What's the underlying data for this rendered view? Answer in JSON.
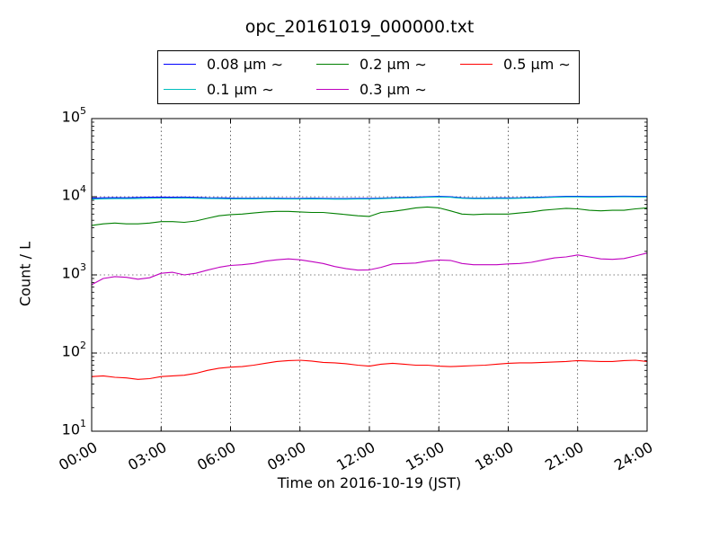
{
  "chart_data": {
    "type": "line",
    "title": "opc_20161019_000000.txt",
    "xlabel": "Time on 2016-10-19 (JST)",
    "ylabel": "Count / L",
    "x_ticks": [
      "00:00",
      "03:00",
      "06:00",
      "09:00",
      "12:00",
      "15:00",
      "18:00",
      "21:00",
      "24:00"
    ],
    "x_tick_hours": [
      0,
      3,
      6,
      9,
      12,
      15,
      18,
      21,
      24
    ],
    "xlim_hours": [
      0,
      24
    ],
    "y_scale": "log",
    "ylim": [
      10,
      100000
    ],
    "y_ticks": [
      {
        "base": "10",
        "exp": "1",
        "value": 10
      },
      {
        "base": "10",
        "exp": "2",
        "value": 100
      },
      {
        "base": "10",
        "exp": "3",
        "value": 1000
      },
      {
        "base": "10",
        "exp": "4",
        "value": 10000
      },
      {
        "base": "10",
        "exp": "5",
        "value": 100000
      }
    ],
    "grid": true,
    "legend_position": "top",
    "x_hours": [
      0,
      0.5,
      1,
      1.5,
      2,
      2.5,
      3,
      3.5,
      4,
      4.5,
      5,
      5.5,
      6,
      6.5,
      7,
      7.5,
      8,
      8.5,
      9,
      9.5,
      10,
      10.5,
      11,
      11.5,
      12,
      12.5,
      13,
      13.5,
      14,
      14.5,
      15,
      15.5,
      16,
      16.5,
      17,
      17.5,
      18,
      18.5,
      19,
      19.5,
      20,
      20.5,
      21,
      21.5,
      22,
      22.5,
      23,
      23.5,
      24
    ],
    "series": [
      {
        "name": "0.08 μm ∼",
        "color": "#0000ff",
        "values": [
          9600,
          9700,
          9750,
          9700,
          9800,
          9850,
          9900,
          9850,
          9900,
          9800,
          9700,
          9650,
          9600,
          9550,
          9550,
          9600,
          9550,
          9500,
          9500,
          9550,
          9500,
          9450,
          9450,
          9500,
          9500,
          9600,
          9700,
          9800,
          9900,
          10000,
          10100,
          10000,
          9700,
          9600,
          9600,
          9650,
          9650,
          9700,
          9800,
          9900,
          10000,
          10100,
          10100,
          10050,
          10050,
          10100,
          10150,
          10100,
          10100
        ]
      },
      {
        "name": "0.1 μm ∼",
        "color": "#00bfbf",
        "values": [
          9300,
          9400,
          9450,
          9450,
          9500,
          9550,
          9600,
          9600,
          9650,
          9550,
          9500,
          9450,
          9400,
          9400,
          9400,
          9450,
          9400,
          9350,
          9350,
          9400,
          9350,
          9300,
          9300,
          9350,
          9350,
          9450,
          9550,
          9650,
          9750,
          9850,
          9950,
          9850,
          9550,
          9450,
          9450,
          9500,
          9500,
          9550,
          9650,
          9750,
          9850,
          9950,
          9950,
          9900,
          9900,
          9950,
          10000,
          9950,
          9950
        ]
      },
      {
        "name": "0.2 μm ∼",
        "color": "#007f00",
        "values": [
          4300,
          4500,
          4600,
          4500,
          4500,
          4600,
          4800,
          4800,
          4700,
          4900,
          5300,
          5700,
          5900,
          6000,
          6200,
          6400,
          6500,
          6500,
          6400,
          6300,
          6300,
          6100,
          5900,
          5700,
          5600,
          6300,
          6500,
          6800,
          7200,
          7400,
          7200,
          6600,
          6000,
          5900,
          6000,
          6000,
          6000,
          6200,
          6400,
          6700,
          6900,
          7100,
          7000,
          6700,
          6600,
          6700,
          6700,
          7000,
          7200
        ]
      },
      {
        "name": "0.3 μm ∼",
        "color": "#bf00bf",
        "values": [
          750,
          900,
          950,
          930,
          880,
          920,
          1050,
          1080,
          1000,
          1050,
          1150,
          1250,
          1320,
          1350,
          1400,
          1500,
          1560,
          1600,
          1560,
          1480,
          1400,
          1280,
          1200,
          1150,
          1160,
          1250,
          1380,
          1400,
          1420,
          1500,
          1550,
          1530,
          1400,
          1350,
          1350,
          1350,
          1380,
          1400,
          1450,
          1550,
          1650,
          1700,
          1800,
          1700,
          1600,
          1580,
          1620,
          1750,
          1900
        ]
      },
      {
        "name": "0.5 μm ∼",
        "color": "#ff0000",
        "values": [
          50,
          51,
          49,
          48,
          46,
          47,
          50,
          51,
          52,
          55,
          60,
          64,
          66,
          67,
          70,
          74,
          78,
          80,
          81,
          79,
          76,
          75,
          73,
          70,
          68,
          72,
          74,
          72,
          70,
          70,
          68,
          67,
          68,
          69,
          70,
          72,
          74,
          75,
          75,
          76,
          77,
          78,
          80,
          79,
          78,
          78,
          80,
          81,
          78
        ]
      }
    ]
  }
}
